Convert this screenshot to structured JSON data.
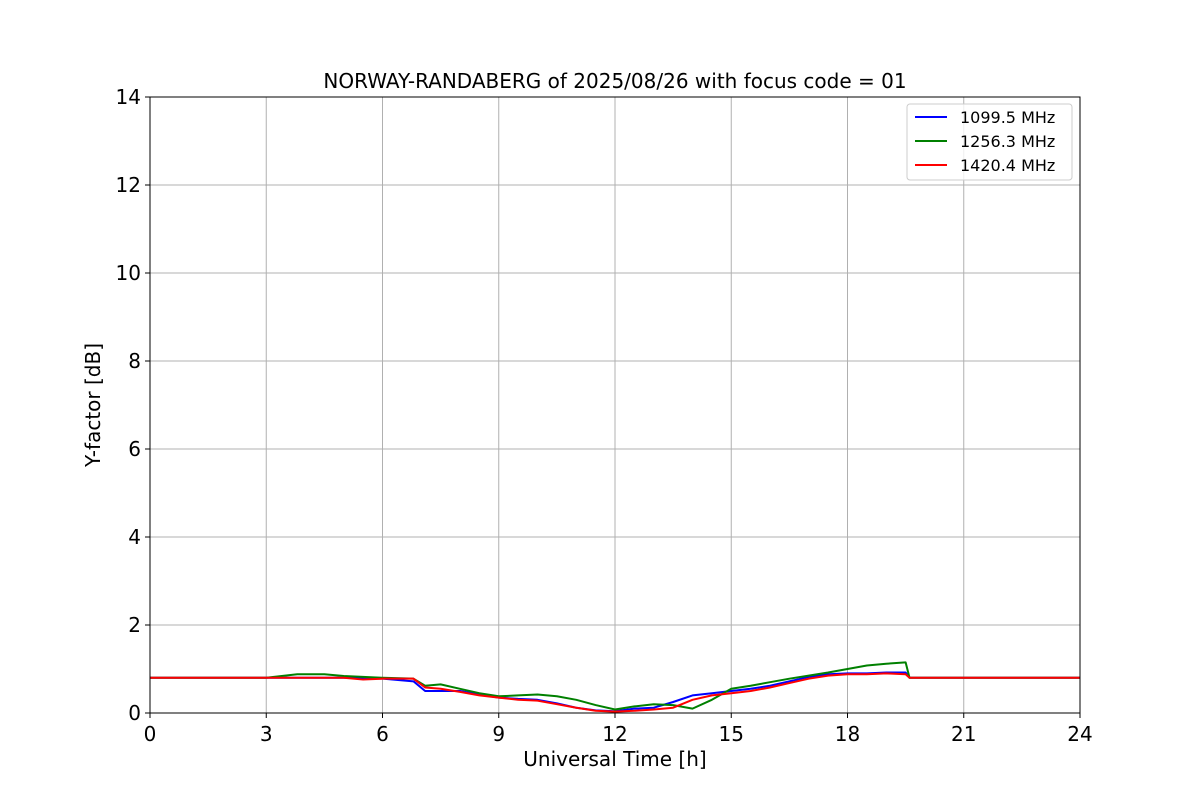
{
  "chart_data": {
    "type": "line",
    "title": "NORWAY-RANDABERG of 2025/08/26 with focus code = 01",
    "xlabel": "Universal Time [h]",
    "ylabel": "Y-factor [dB]",
    "xlim": [
      0,
      24
    ],
    "ylim": [
      0,
      14
    ],
    "xticks": [
      0,
      3,
      6,
      9,
      12,
      15,
      18,
      21,
      24
    ],
    "yticks": [
      0,
      2,
      4,
      6,
      8,
      10,
      12,
      14
    ],
    "grid": true,
    "legend_position": "top-right",
    "series": [
      {
        "name": "1099.5 MHz",
        "color": "#0000ff",
        "x": [
          0,
          1,
          2,
          3,
          4,
          5,
          6,
          6.8,
          7.1,
          7.5,
          8,
          8.5,
          9,
          9.5,
          10,
          10.5,
          11,
          11.5,
          12,
          12.5,
          13,
          13.5,
          14,
          14.5,
          15,
          15.5,
          16,
          16.5,
          17,
          17.5,
          18,
          18.5,
          19,
          19.5,
          19.6,
          20,
          21,
          22,
          23,
          24
        ],
        "y": [
          0.8,
          0.8,
          0.8,
          0.8,
          0.8,
          0.8,
          0.78,
          0.72,
          0.5,
          0.5,
          0.5,
          0.42,
          0.35,
          0.32,
          0.3,
          0.22,
          0.12,
          0.06,
          0.04,
          0.1,
          0.12,
          0.25,
          0.4,
          0.45,
          0.5,
          0.55,
          0.62,
          0.72,
          0.82,
          0.88,
          0.9,
          0.9,
          0.92,
          0.92,
          0.8,
          0.8,
          0.8,
          0.8,
          0.8,
          0.8
        ]
      },
      {
        "name": "1256.3 MHz",
        "color": "#008000",
        "x": [
          0,
          1,
          2,
          3,
          3.8,
          4.5,
          5,
          6,
          6.8,
          7.1,
          7.5,
          8,
          8.5,
          9,
          9.5,
          10,
          10.5,
          11,
          11.5,
          12,
          12.5,
          13,
          13.5,
          14,
          14.5,
          15,
          15.5,
          16,
          16.5,
          17,
          17.5,
          18,
          18.5,
          19,
          19.5,
          19.6,
          20,
          21,
          22,
          23,
          24
        ],
        "y": [
          0.8,
          0.8,
          0.8,
          0.8,
          0.88,
          0.88,
          0.84,
          0.8,
          0.78,
          0.62,
          0.65,
          0.55,
          0.45,
          0.38,
          0.4,
          0.42,
          0.38,
          0.3,
          0.18,
          0.08,
          0.15,
          0.2,
          0.18,
          0.1,
          0.3,
          0.55,
          0.62,
          0.7,
          0.78,
          0.85,
          0.92,
          1.0,
          1.08,
          1.12,
          1.15,
          0.8,
          0.8,
          0.8,
          0.8,
          0.8,
          0.8
        ]
      },
      {
        "name": "1420.4 MHz",
        "color": "#ff0000",
        "x": [
          0,
          1,
          2,
          3,
          4,
          5,
          5.5,
          6,
          6.8,
          7.1,
          7.5,
          8,
          8.5,
          9,
          9.5,
          10,
          10.5,
          11,
          11.5,
          12,
          12.5,
          13,
          13.5,
          14,
          14.5,
          15,
          15.5,
          16,
          16.5,
          17,
          17.5,
          18,
          18.5,
          19,
          19.5,
          19.6,
          20,
          21,
          22,
          23,
          24
        ],
        "y": [
          0.8,
          0.8,
          0.8,
          0.8,
          0.8,
          0.8,
          0.76,
          0.78,
          0.78,
          0.58,
          0.55,
          0.48,
          0.4,
          0.35,
          0.3,
          0.28,
          0.2,
          0.12,
          0.05,
          0.03,
          0.05,
          0.08,
          0.12,
          0.3,
          0.4,
          0.45,
          0.5,
          0.58,
          0.68,
          0.78,
          0.85,
          0.88,
          0.88,
          0.9,
          0.88,
          0.8,
          0.8,
          0.8,
          0.8,
          0.8,
          0.8
        ]
      }
    ]
  }
}
